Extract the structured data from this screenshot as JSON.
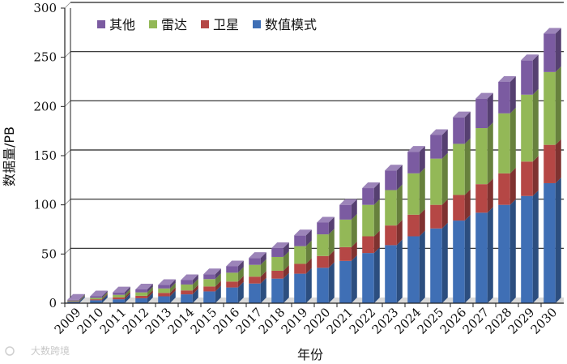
{
  "chart_data": {
    "type": "bar",
    "stacked": true,
    "xlabel": "年份",
    "ylabel": "数据量/PB",
    "ylim": [
      0,
      300
    ],
    "yticks": [
      0,
      50,
      100,
      150,
      200,
      250,
      300
    ],
    "grid": true,
    "legend_position": "top-left",
    "categories": [
      "2009",
      "2010",
      "2011",
      "2012",
      "2013",
      "2014",
      "2015",
      "2016",
      "2017",
      "2018",
      "2019",
      "2020",
      "2021",
      "2022",
      "2023",
      "2024",
      "2025",
      "2026",
      "2027",
      "2028",
      "2029",
      "2030"
    ],
    "series": [
      {
        "name": "数值模式",
        "color": "#3f6fb5",
        "values": [
          1.5,
          3,
          4,
          5,
          7,
          9,
          12,
          16,
          20,
          25,
          30,
          36,
          43,
          51,
          59,
          68,
          76,
          84,
          92,
          100,
          109,
          122
        ]
      },
      {
        "name": "卫星",
        "color": "#b54745",
        "values": [
          0.5,
          1,
          2,
          2.5,
          3.5,
          4,
          5,
          6,
          7,
          8,
          10,
          12,
          14,
          17,
          20,
          22,
          24,
          26,
          29,
          32,
          35,
          39
        ]
      },
      {
        "name": "雷达",
        "color": "#93b857",
        "values": [
          0.7,
          1.5,
          2.5,
          3.5,
          4.5,
          6,
          7.5,
          9,
          12,
          14,
          18,
          22,
          28,
          32,
          36,
          42,
          47,
          52,
          57,
          61,
          68,
          74
        ]
      },
      {
        "name": "其他",
        "color": "#7b5ba1",
        "values": [
          0.8,
          1.5,
          2.5,
          3,
          3.5,
          4.5,
          5,
          6.5,
          7,
          9,
          11,
          12,
          15,
          17,
          20,
          22,
          24,
          27,
          30,
          32,
          35,
          39
        ]
      }
    ],
    "legend_order": [
      "其他",
      "雷达",
      "卫星",
      "数值模式"
    ]
  },
  "watermark": {
    "text": "大数跨境"
  }
}
